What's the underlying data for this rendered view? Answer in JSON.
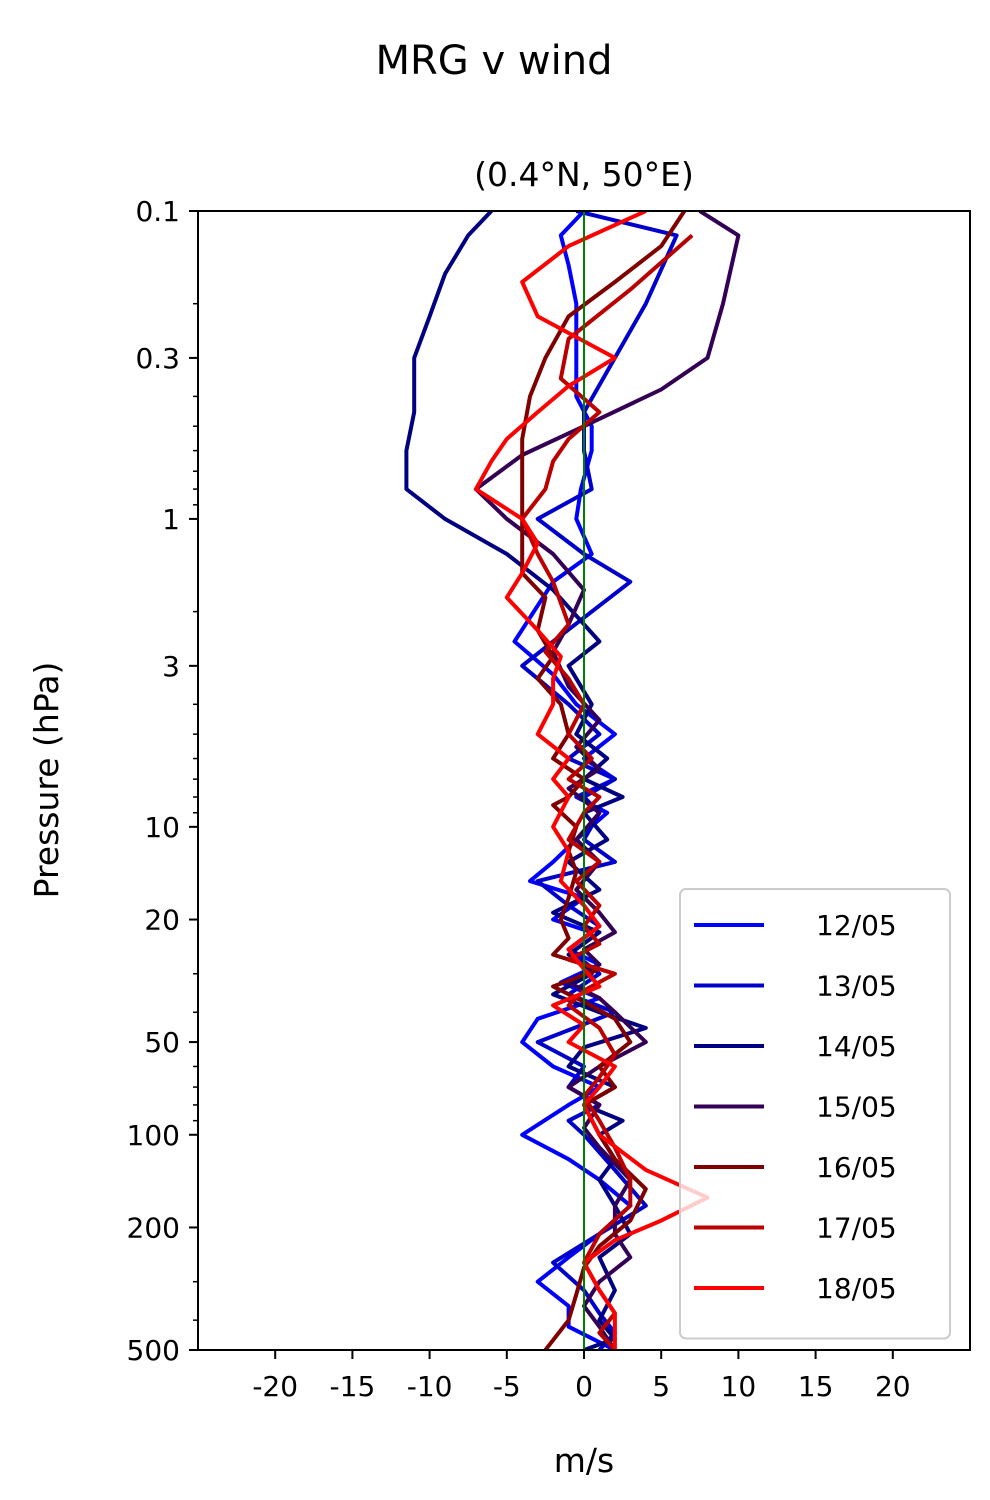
{
  "chart_data": {
    "type": "line",
    "title": "MRG v wind",
    "subtitle": "(0.4°N, 50°E)",
    "xlabel": "m/s",
    "ylabel": "Pressure (hPa)",
    "xlim": [
      -25,
      25
    ],
    "ylim": [
      500,
      0.1
    ],
    "yscale": "log",
    "x_ticks": [
      -20,
      -15,
      -10,
      -5,
      0,
      5,
      10,
      15,
      20
    ],
    "x_tick_labels": [
      "-20",
      "-15",
      "-10",
      "-5",
      "0",
      "5",
      "10",
      "15",
      "20"
    ],
    "y_ticks": [
      0.1,
      0.3,
      1,
      3,
      10,
      20,
      50,
      100,
      200,
      500
    ],
    "y_tick_labels": [
      "0.1",
      "0.3",
      "1",
      "3",
      "10",
      "20",
      "50",
      "100",
      "200",
      "500"
    ],
    "reference_line": {
      "x": 0,
      "color": "#008000"
    },
    "legend_position": "lower-right",
    "grid": false,
    "series": [
      {
        "name": "12/05",
        "color": "#0000ff",
        "points": [
          [
            0,
            0.1
          ],
          [
            -1.5,
            0.12
          ],
          [
            -1,
            0.15
          ],
          [
            -0.5,
            0.2
          ],
          [
            -0.5,
            0.3
          ],
          [
            -0.5,
            0.4
          ],
          [
            0.5,
            0.5
          ],
          [
            0.5,
            0.6
          ],
          [
            -0.2,
            0.8
          ],
          [
            -0.5,
            1.0
          ],
          [
            0.5,
            1.3
          ],
          [
            -2,
            1.6
          ],
          [
            -4.5,
            2.5
          ],
          [
            -2,
            3.2
          ],
          [
            -0.5,
            4
          ],
          [
            2,
            5
          ],
          [
            0,
            6
          ],
          [
            2,
            7
          ],
          [
            -0.5,
            8
          ],
          [
            1.5,
            9
          ],
          [
            -0.5,
            11
          ],
          [
            -2,
            13
          ],
          [
            -3.5,
            15
          ],
          [
            0,
            17
          ],
          [
            -2,
            20
          ],
          [
            0.5,
            22
          ],
          [
            -1,
            25
          ],
          [
            1,
            28
          ],
          [
            -1.5,
            32
          ],
          [
            1,
            36
          ],
          [
            -3,
            42
          ],
          [
            -4,
            50
          ],
          [
            -2,
            60
          ],
          [
            1,
            70
          ],
          [
            -1,
            80
          ],
          [
            -4,
            100
          ],
          [
            -1,
            120
          ],
          [
            1,
            140
          ],
          [
            3,
            170
          ],
          [
            1,
            210
          ],
          [
            -1,
            250
          ],
          [
            -3,
            300
          ],
          [
            -1,
            360
          ],
          [
            -1,
            420
          ],
          [
            2,
            500
          ]
        ]
      },
      {
        "name": "13/05",
        "color": "#0000cc",
        "points": [
          [
            -0.5,
            0.1
          ],
          [
            6,
            0.12
          ],
          [
            4,
            0.2
          ],
          [
            2,
            0.3
          ],
          [
            0,
            0.45
          ],
          [
            0,
            0.6
          ],
          [
            0.5,
            0.8
          ],
          [
            -3,
            1.0
          ],
          [
            0,
            1.3
          ],
          [
            3,
            1.6
          ],
          [
            -2,
            2.5
          ],
          [
            -4,
            3.0
          ],
          [
            -1,
            4
          ],
          [
            1,
            5
          ],
          [
            -1,
            6
          ],
          [
            2,
            7
          ],
          [
            0,
            8
          ],
          [
            1,
            9
          ],
          [
            0,
            11
          ],
          [
            2,
            13
          ],
          [
            -3,
            15
          ],
          [
            -1,
            18
          ],
          [
            1,
            21
          ],
          [
            -1,
            25
          ],
          [
            1,
            30
          ],
          [
            -1,
            35
          ],
          [
            2,
            40
          ],
          [
            -3,
            50
          ],
          [
            0,
            60
          ],
          [
            -1,
            70
          ],
          [
            1,
            80
          ],
          [
            -1,
            90
          ],
          [
            0,
            100
          ],
          [
            2,
            130
          ],
          [
            4,
            170
          ],
          [
            1,
            210
          ],
          [
            -2,
            260
          ],
          [
            0,
            320
          ],
          [
            1,
            380
          ],
          [
            2,
            440
          ],
          [
            1,
            500
          ]
        ]
      },
      {
        "name": "14/05",
        "color": "#000080",
        "points": [
          [
            -6,
            0.1
          ],
          [
            -7.5,
            0.12
          ],
          [
            -9,
            0.16
          ],
          [
            -10,
            0.22
          ],
          [
            -11,
            0.3
          ],
          [
            -11,
            0.45
          ],
          [
            -11.5,
            0.6
          ],
          [
            -11.5,
            0.8
          ],
          [
            -9,
            1.0
          ],
          [
            -5,
            1.3
          ],
          [
            -2,
            1.7
          ],
          [
            1,
            2.5
          ],
          [
            -1,
            3.0
          ],
          [
            0.5,
            4
          ],
          [
            -0.5,
            5
          ],
          [
            1.5,
            6
          ],
          [
            0,
            7
          ],
          [
            2.5,
            8
          ],
          [
            0,
            9
          ],
          [
            1.5,
            11
          ],
          [
            -1,
            13
          ],
          [
            1,
            16
          ],
          [
            -2,
            19
          ],
          [
            1,
            22
          ],
          [
            -1,
            26
          ],
          [
            0.5,
            30
          ],
          [
            -2,
            35
          ],
          [
            1,
            40
          ],
          [
            4,
            45
          ],
          [
            0,
            52
          ],
          [
            -1,
            60
          ],
          [
            2,
            70
          ],
          [
            0,
            80
          ],
          [
            2.5,
            90
          ],
          [
            1,
            100
          ],
          [
            2,
            120
          ],
          [
            1,
            140
          ],
          [
            2,
            170
          ],
          [
            3,
            210
          ],
          [
            1,
            250
          ],
          [
            2,
            320
          ],
          [
            1,
            400
          ],
          [
            2,
            460
          ],
          [
            0,
            500
          ]
        ]
      },
      {
        "name": "15/05",
        "color": "#330055",
        "points": [
          [
            7.5,
            0.1
          ],
          [
            10,
            0.12
          ],
          [
            9,
            0.2
          ],
          [
            8,
            0.3
          ],
          [
            5,
            0.38
          ],
          [
            0,
            0.5
          ],
          [
            -4,
            0.62
          ],
          [
            -7,
            0.8
          ],
          [
            -5,
            1.0
          ],
          [
            -2,
            1.3
          ],
          [
            0,
            1.7
          ],
          [
            -1,
            2.2
          ],
          [
            -2,
            2.7
          ],
          [
            -1,
            3.5
          ],
          [
            1,
            4.5
          ],
          [
            -0.5,
            5.5
          ],
          [
            1,
            6.5
          ],
          [
            -1,
            7.5
          ],
          [
            1,
            9
          ],
          [
            -0.5,
            11
          ],
          [
            1,
            13
          ],
          [
            -0.5,
            16
          ],
          [
            1,
            19
          ],
          [
            2,
            22
          ],
          [
            0,
            25
          ],
          [
            1,
            28
          ],
          [
            -1,
            32
          ],
          [
            1,
            36
          ],
          [
            2,
            40
          ],
          [
            4,
            50
          ],
          [
            1,
            60
          ],
          [
            -1,
            70
          ],
          [
            1,
            80
          ],
          [
            0,
            95
          ],
          [
            1,
            110
          ],
          [
            3,
            140
          ],
          [
            2,
            170
          ],
          [
            2,
            210
          ],
          [
            3,
            250
          ],
          [
            1,
            300
          ],
          [
            0,
            360
          ],
          [
            1,
            420
          ],
          [
            2,
            500
          ]
        ]
      },
      {
        "name": "16/05",
        "color": "#800000",
        "points": [
          [
            6.5,
            0.1
          ],
          [
            5,
            0.13
          ],
          [
            2,
            0.17
          ],
          [
            -1,
            0.22
          ],
          [
            -2.5,
            0.3
          ],
          [
            -3.5,
            0.4
          ],
          [
            -4,
            0.55
          ],
          [
            -4,
            0.7
          ],
          [
            -4,
            0.85
          ],
          [
            -4,
            1.0
          ],
          [
            -4,
            1.2
          ],
          [
            -4,
            1.5
          ],
          [
            -2.5,
            1.8
          ],
          [
            -3,
            2.3
          ],
          [
            -2,
            2.8
          ],
          [
            -3,
            3.3
          ],
          [
            -1.5,
            4
          ],
          [
            -1,
            5
          ],
          [
            -2,
            6
          ],
          [
            0,
            7
          ],
          [
            -1,
            8
          ],
          [
            -2,
            8.5
          ],
          [
            -0.5,
            10
          ],
          [
            -1,
            12
          ],
          [
            -0.5,
            14
          ],
          [
            -1,
            17
          ],
          [
            -1.5,
            20
          ],
          [
            -1,
            23
          ],
          [
            -2,
            26
          ],
          [
            1,
            29
          ],
          [
            -2,
            33
          ],
          [
            0,
            37
          ],
          [
            2,
            42
          ],
          [
            3,
            50
          ],
          [
            1,
            60
          ],
          [
            2,
            70
          ],
          [
            0,
            80
          ],
          [
            1,
            100
          ],
          [
            2,
            120
          ],
          [
            4,
            150
          ],
          [
            3,
            190
          ],
          [
            1,
            230
          ],
          [
            0,
            270
          ],
          [
            -0.5,
            330
          ],
          [
            -1,
            400
          ],
          [
            -2.5,
            500
          ]
        ]
      },
      {
        "name": "17/05",
        "color": "#bb0000",
        "points": [
          [
            7,
            0.12
          ],
          [
            3,
            0.18
          ],
          [
            -1,
            0.26
          ],
          [
            -1.5,
            0.35
          ],
          [
            1,
            0.45
          ],
          [
            -1,
            0.55
          ],
          [
            -2,
            0.65
          ],
          [
            -2.5,
            0.8
          ],
          [
            -4,
            1.0
          ],
          [
            -3,
            1.3
          ],
          [
            -2,
            1.6
          ],
          [
            -1,
            2.2
          ],
          [
            -2.5,
            2.7
          ],
          [
            -1,
            3.3
          ],
          [
            0,
            4
          ],
          [
            -1,
            5
          ],
          [
            0.5,
            6
          ],
          [
            -1,
            7
          ],
          [
            1,
            8
          ],
          [
            0,
            9
          ],
          [
            -1,
            11
          ],
          [
            1,
            13
          ],
          [
            -0.5,
            15
          ],
          [
            1,
            18
          ],
          [
            0,
            21
          ],
          [
            1,
            24
          ],
          [
            -1,
            27
          ],
          [
            2,
            30
          ],
          [
            0,
            34
          ],
          [
            -1,
            38
          ],
          [
            1,
            45
          ],
          [
            2,
            55
          ],
          [
            1,
            65
          ],
          [
            0,
            75
          ],
          [
            1,
            90
          ],
          [
            2,
            110
          ],
          [
            3,
            140
          ],
          [
            3,
            170
          ],
          [
            1,
            210
          ],
          [
            0,
            260
          ],
          [
            1,
            320
          ],
          [
            2,
            380
          ],
          [
            1,
            440
          ],
          [
            2,
            500
          ]
        ]
      },
      {
        "name": "18/05",
        "color": "#ff0000",
        "points": [
          [
            4,
            0.1
          ],
          [
            -1,
            0.13
          ],
          [
            -4,
            0.17
          ],
          [
            -3,
            0.22
          ],
          [
            2,
            0.3
          ],
          [
            -1,
            0.37
          ],
          [
            -3,
            0.45
          ],
          [
            -5,
            0.55
          ],
          [
            -6,
            0.65
          ],
          [
            -7,
            0.8
          ],
          [
            -4,
            1.0
          ],
          [
            -3,
            1.2
          ],
          [
            -4,
            1.5
          ],
          [
            -5,
            1.8
          ],
          [
            -3,
            2.3
          ],
          [
            -1.5,
            2.8
          ],
          [
            -2,
            3.3
          ],
          [
            -2,
            4
          ],
          [
            -3,
            5
          ],
          [
            -1,
            6
          ],
          [
            -2,
            7
          ],
          [
            -1,
            8
          ],
          [
            -2,
            10
          ],
          [
            -1,
            12
          ],
          [
            -1.5,
            15
          ],
          [
            0,
            18
          ],
          [
            1,
            21
          ],
          [
            -1,
            25
          ],
          [
            0,
            29
          ],
          [
            1,
            33
          ],
          [
            -2,
            38
          ],
          [
            0,
            44
          ],
          [
            -1,
            50
          ],
          [
            2,
            60
          ],
          [
            1,
            70
          ],
          [
            0,
            80
          ],
          [
            1,
            100
          ],
          [
            4,
            130
          ],
          [
            8,
            160
          ],
          [
            5,
            190
          ],
          [
            2,
            220
          ],
          [
            0,
            260
          ],
          [
            1,
            320
          ],
          [
            2,
            380
          ],
          [
            2,
            440
          ],
          [
            2,
            500
          ]
        ]
      }
    ]
  }
}
